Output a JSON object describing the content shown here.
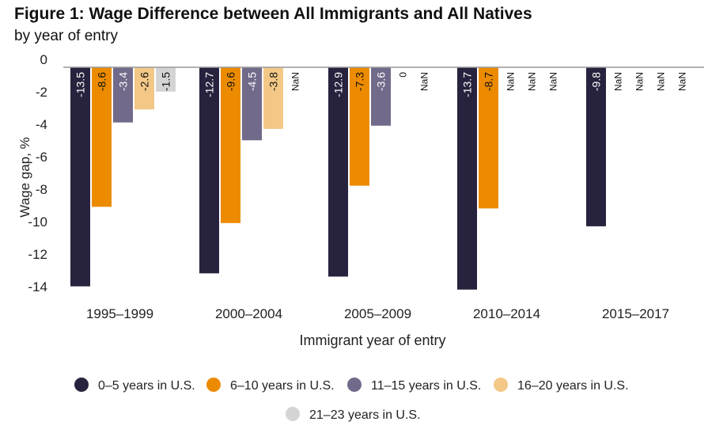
{
  "chart_data": {
    "type": "bar",
    "title": "Figure 1: Wage Difference between All Immigrants and All Natives",
    "subtitle": "by year of entry",
    "xlabel": "Immigrant year of entry",
    "ylabel": "Wage gap, %",
    "ylim": [
      -14,
      0
    ],
    "yticks": [
      "0",
      "-2",
      "-4",
      "-6",
      "-8",
      "-10",
      "-12",
      "-14"
    ],
    "ytick_values": [
      0,
      -2,
      -4,
      -6,
      -8,
      -10,
      -12,
      -14
    ],
    "categories": [
      "1995–1999",
      "2000–2004",
      "2005–2009",
      "2010–2014",
      "2015–2017"
    ],
    "legend_position": "bottom",
    "series": [
      {
        "name": "0–5 years in U.S.",
        "color": "#27223d",
        "label_color": "#ffffff",
        "values": [
          -13.5,
          -12.7,
          -12.9,
          -13.7,
          -9.8
        ],
        "labels": [
          "-13.5",
          "-12.7",
          "-12.9",
          "-13.7",
          "-9.8"
        ]
      },
      {
        "name": "6–10 years in U.S.",
        "color": "#ec8b00",
        "label_color": "#111111",
        "values": [
          -8.6,
          -9.6,
          -7.3,
          -8.7,
          null
        ],
        "labels": [
          "-8.6",
          "-9.6",
          "-7.3",
          "-8.7",
          "NaN"
        ]
      },
      {
        "name": "11–15 years in U.S.",
        "color": "#726a8a",
        "label_color": "#ffffff",
        "values": [
          -3.4,
          -4.5,
          -3.6,
          null,
          null
        ],
        "labels": [
          "-3.4",
          "-4.5",
          "-3.6",
          "NaN",
          "NaN"
        ]
      },
      {
        "name": "16–20 years in U.S.",
        "color": "#f3c886",
        "label_color": "#111111",
        "values": [
          -2.6,
          -3.8,
          0,
          null,
          null
        ],
        "labels": [
          "-2.6",
          "-3.8",
          "0",
          "NaN",
          "NaN"
        ]
      },
      {
        "name": "21–23 years in U.S.",
        "color": "#d4d4d4",
        "label_color": "#111111",
        "values": [
          -1.5,
          null,
          null,
          null,
          null
        ],
        "labels": [
          "-1.5",
          "NaN",
          "NaN",
          "NaN",
          "NaN"
        ]
      }
    ]
  }
}
